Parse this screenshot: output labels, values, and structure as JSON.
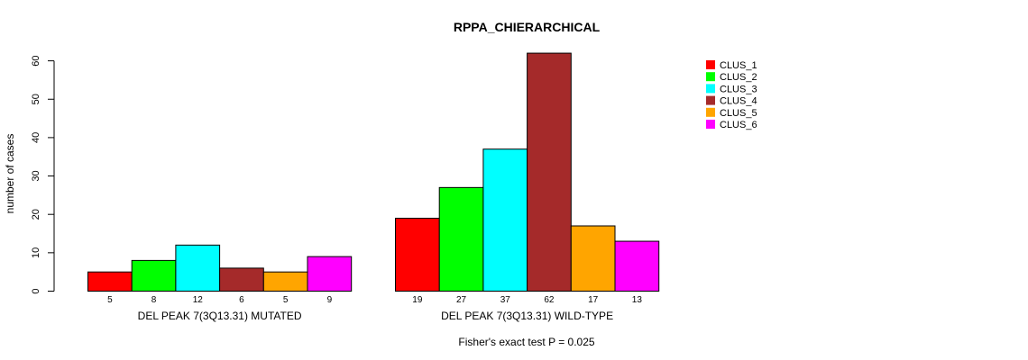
{
  "chart_data": {
    "type": "bar",
    "title": "RPPA_CHIERARCHICAL",
    "ylabel": "number of cases",
    "ylim": [
      0,
      60
    ],
    "yticks": [
      0,
      10,
      20,
      30,
      40,
      50,
      60
    ],
    "groups": [
      {
        "name": "DEL PEAK  7(3Q13.31) MUTATED",
        "values": [
          5,
          8,
          12,
          6,
          5,
          9
        ],
        "value_labels": [
          "5",
          "8",
          "12",
          "6",
          "5",
          "9"
        ]
      },
      {
        "name": "DEL PEAK  7(3Q13.31) WILD-TYPE",
        "values": [
          19,
          27,
          37,
          62,
          17,
          13
        ],
        "value_labels": [
          "19",
          "27",
          "37",
          "62",
          "17",
          "13"
        ]
      }
    ],
    "series": [
      {
        "name": "CLUS_1",
        "color": "#ff0000"
      },
      {
        "name": "CLUS_2",
        "color": "#00ff00"
      },
      {
        "name": "CLUS_3",
        "color": "#00ffff"
      },
      {
        "name": "CLUS_4",
        "color": "#a52a2a"
      },
      {
        "name": "CLUS_5",
        "color": "#ffa500"
      },
      {
        "name": "CLUS_6",
        "color": "#ff00ff"
      }
    ],
    "legend_position": "top-right",
    "footnote": "Fisher's exact test P = 0.025"
  }
}
